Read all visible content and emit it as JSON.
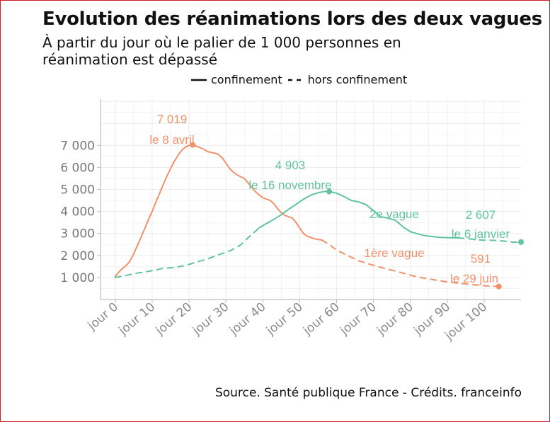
{
  "header": {
    "title": "Evolution des réanimations lors des deux vagues",
    "subtitle": "À partir du jour où le palier de 1 000 personnes en réanimation est dépassé"
  },
  "legend": {
    "solid_label": "confinement",
    "dashed_label": "hors confinement"
  },
  "footer": {
    "source": "Source. Santé publique France - Crédits. franceinfo"
  },
  "colors": {
    "wave1": "#f0916a",
    "wave2": "#5fc39f",
    "grid": "#ececec",
    "axis": "#bdbdbd"
  },
  "chart_data": {
    "type": "line",
    "title": "Evolution des réanimations lors des deux vagues",
    "xlabel": "",
    "ylabel": "",
    "xlim": [
      -4,
      110
    ],
    "ylim": [
      0,
      9100
    ],
    "x_ticks": [
      0,
      10,
      20,
      30,
      40,
      50,
      60,
      70,
      80,
      90,
      100
    ],
    "x_tick_labels": [
      "jour 0",
      "jour 10",
      "jour 20",
      "jour 30",
      "jour 40",
      "jour 50",
      "jour 60",
      "jour 70",
      "jour 80",
      "jour 90",
      "jour 100"
    ],
    "y_ticks": [
      1000,
      2000,
      3000,
      4000,
      5000,
      6000,
      7000
    ],
    "y_tick_labels": [
      "1 000",
      "2 000",
      "3 000",
      "4 000",
      "5 000",
      "6 000",
      "7 000"
    ],
    "series": [
      {
        "name": "1ère vague",
        "color": "#f0916a",
        "segments": [
          {
            "style": "confinement",
            "points": [
              [
                0,
                1050
              ],
              [
                1,
                1250
              ],
              [
                2,
                1420
              ],
              [
                3,
                1550
              ],
              [
                4,
                1750
              ],
              [
                5,
                2080
              ],
              [
                6,
                2450
              ],
              [
                7,
                2830
              ],
              [
                8,
                3230
              ],
              [
                9,
                3620
              ],
              [
                10,
                4000
              ],
              [
                11,
                4420
              ],
              [
                12,
                4820
              ],
              [
                13,
                5220
              ],
              [
                14,
                5600
              ],
              [
                15,
                5950
              ],
              [
                16,
                6270
              ],
              [
                17,
                6540
              ],
              [
                18,
                6770
              ],
              [
                19,
                6920
              ],
              [
                20,
                7000
              ],
              [
                21,
                7019
              ],
              [
                22,
                6960
              ],
              [
                23,
                6900
              ],
              [
                24,
                6820
              ],
              [
                25,
                6720
              ],
              [
                26,
                6680
              ],
              [
                27,
                6650
              ],
              [
                28,
                6580
              ],
              [
                29,
                6430
              ],
              [
                30,
                6200
              ],
              [
                31,
                5950
              ],
              [
                32,
                5780
              ],
              [
                33,
                5660
              ],
              [
                34,
                5580
              ],
              [
                35,
                5500
              ],
              [
                36,
                5300
              ],
              [
                37,
                5100
              ],
              [
                38,
                4900
              ],
              [
                39,
                4750
              ],
              [
                40,
                4620
              ],
              [
                41,
                4560
              ],
              [
                42,
                4500
              ],
              [
                43,
                4350
              ],
              [
                44,
                4130
              ],
              [
                45,
                3940
              ],
              [
                46,
                3820
              ],
              [
                47,
                3760
              ],
              [
                48,
                3700
              ],
              [
                49,
                3500
              ],
              [
                50,
                3250
              ],
              [
                51,
                3000
              ],
              [
                52,
                2880
              ],
              [
                53,
                2820
              ],
              [
                54,
                2760
              ],
              [
                55,
                2730
              ],
              [
                56,
                2700
              ]
            ]
          },
          {
            "style": "hors confinement",
            "points": [
              [
                56,
                2700
              ],
              [
                58,
                2500
              ],
              [
                60,
                2240
              ],
              [
                63,
                2000
              ],
              [
                66,
                1760
              ],
              [
                69,
                1600
              ],
              [
                72,
                1460
              ],
              [
                75,
                1330
              ],
              [
                78,
                1200
              ],
              [
                81,
                1060
              ],
              [
                84,
                960
              ],
              [
                87,
                880
              ],
              [
                90,
                800
              ],
              [
                93,
                740
              ],
              [
                96,
                690
              ],
              [
                99,
                640
              ],
              [
                102,
                605
              ],
              [
                104,
                591
              ]
            ]
          }
        ],
        "highlights": [
          {
            "x": 21,
            "y": 7019,
            "value_label": "7 019",
            "date_label": "le 8 avril"
          },
          {
            "x": 104,
            "y": 591,
            "value_label": "591",
            "date_label": "le 29 juin"
          }
        ],
        "series_label": "1ère vague"
      },
      {
        "name": "2e vague",
        "color": "#5fc39f",
        "segments": [
          {
            "style": "hors confinement",
            "points": [
              [
                0,
                1000
              ],
              [
                3,
                1100
              ],
              [
                6,
                1200
              ],
              [
                9,
                1280
              ],
              [
                11,
                1340
              ],
              [
                13,
                1420
              ],
              [
                16,
                1450
              ],
              [
                19,
                1540
              ],
              [
                22,
                1700
              ],
              [
                25,
                1840
              ],
              [
                28,
                2030
              ],
              [
                31,
                2200
              ],
              [
                34,
                2480
              ],
              [
                36,
                2800
              ],
              [
                37,
                2950
              ],
              [
                38,
                3100
              ],
              [
                39,
                3260
              ]
            ]
          },
          {
            "style": "confinement",
            "points": [
              [
                39,
                3260
              ],
              [
                41,
                3450
              ],
              [
                43,
                3640
              ],
              [
                45,
                3850
              ],
              [
                47,
                4100
              ],
              [
                49,
                4320
              ],
              [
                51,
                4550
              ],
              [
                53,
                4740
              ],
              [
                55,
                4850
              ],
              [
                57,
                4910
              ],
              [
                58,
                4903
              ],
              [
                60,
                4830
              ],
              [
                62,
                4680
              ],
              [
                64,
                4500
              ],
              [
                66,
                4430
              ],
              [
                68,
                4310
              ],
              [
                70,
                4030
              ],
              [
                72,
                3760
              ],
              [
                74,
                3690
              ],
              [
                76,
                3600
              ],
              [
                78,
                3300
              ],
              [
                80,
                3080
              ],
              [
                82,
                2980
              ],
              [
                84,
                2900
              ],
              [
                86,
                2860
              ],
              [
                88,
                2820
              ],
              [
                90,
                2810
              ],
              [
                92,
                2800
              ],
              [
                93,
                2795
              ]
            ]
          },
          {
            "style": "hors confinement",
            "points": [
              [
                93,
                2795
              ],
              [
                96,
                2760
              ],
              [
                99,
                2700
              ],
              [
                102,
                2690
              ],
              [
                105,
                2660
              ],
              [
                108,
                2600
              ],
              [
                110,
                2607
              ]
            ]
          }
        ],
        "highlights": [
          {
            "x": 58,
            "y": 4903,
            "value_label": "4 903",
            "date_label": "le 16 novembre"
          },
          {
            "x": 110,
            "y": 2607,
            "value_label": "2 607",
            "date_label": "le 6 janvier"
          }
        ],
        "series_label": "2e vague"
      }
    ]
  }
}
